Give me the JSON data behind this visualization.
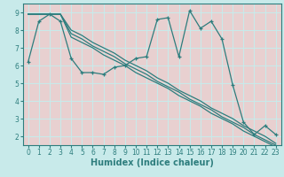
{
  "xlabel": "Humidex (Indice chaleur)",
  "bg_color": "#c8eaea",
  "plot_bg_color": "#e8d0d0",
  "grid_color": "#c8eaea",
  "line_color": "#2d7d7d",
  "xlim": [
    -0.5,
    23.5
  ],
  "ylim": [
    1.5,
    9.5
  ],
  "xticks": [
    0,
    1,
    2,
    3,
    4,
    5,
    6,
    7,
    8,
    9,
    10,
    11,
    12,
    13,
    14,
    15,
    16,
    17,
    18,
    19,
    20,
    21,
    22,
    23
  ],
  "yticks": [
    2,
    3,
    4,
    5,
    6,
    7,
    8,
    9
  ],
  "main_y": [
    6.2,
    8.5,
    8.9,
    8.5,
    6.4,
    5.6,
    5.6,
    5.5,
    5.9,
    6.0,
    6.4,
    6.5,
    8.6,
    8.7,
    6.5,
    9.1,
    8.1,
    8.5,
    7.5,
    4.9,
    2.8,
    2.1,
    2.6,
    2.1
  ],
  "line1_y": [
    8.9,
    8.9,
    8.9,
    8.9,
    8.0,
    7.7,
    7.3,
    7.0,
    6.7,
    6.3,
    6.0,
    5.7,
    5.3,
    5.0,
    4.6,
    4.3,
    4.0,
    3.6,
    3.3,
    3.0,
    2.6,
    2.3,
    2.0,
    1.6
  ],
  "line2_y": [
    8.9,
    8.9,
    8.9,
    8.9,
    7.8,
    7.5,
    7.1,
    6.8,
    6.5,
    6.1,
    5.8,
    5.5,
    5.1,
    4.8,
    4.5,
    4.1,
    3.8,
    3.5,
    3.1,
    2.8,
    2.5,
    2.1,
    1.8,
    1.5
  ],
  "line3_y": [
    8.9,
    8.9,
    8.9,
    8.9,
    7.6,
    7.3,
    7.0,
    6.6,
    6.3,
    6.0,
    5.6,
    5.3,
    5.0,
    4.7,
    4.3,
    4.0,
    3.7,
    3.3,
    3.0,
    2.7,
    2.3,
    2.0,
    1.7,
    1.4
  ],
  "xlabel_fontsize": 7,
  "tick_fontsize": 5.5
}
